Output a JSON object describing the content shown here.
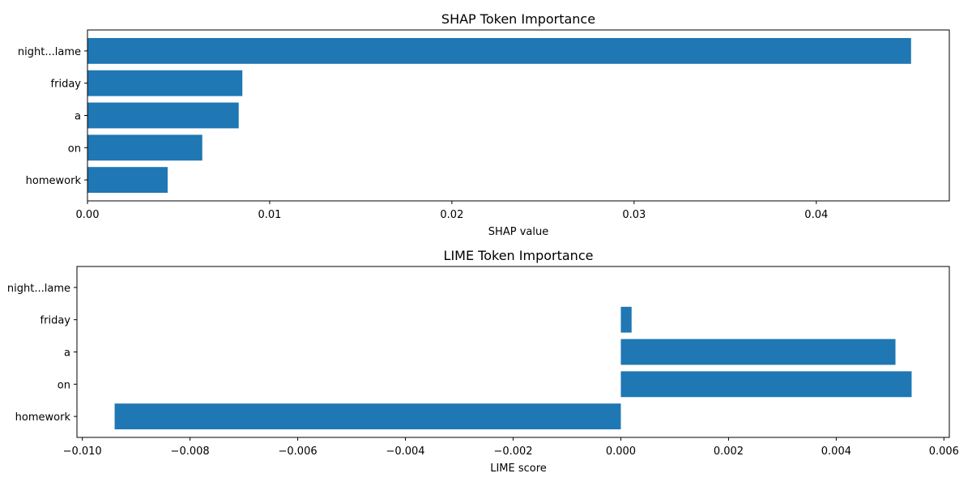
{
  "chart_data": [
    {
      "type": "bar",
      "orientation": "horizontal",
      "title": "SHAP Token Importance",
      "xlabel": "SHAP value",
      "ylabel": "",
      "categories": [
        "night...lame",
        "friday",
        "a",
        "on",
        "homework"
      ],
      "values": [
        0.0452,
        0.0085,
        0.0083,
        0.0063,
        0.0044
      ],
      "xlim": [
        0,
        0.0473
      ],
      "xticks": [
        0.0,
        0.01,
        0.02,
        0.03,
        0.04
      ],
      "xtick_labels": [
        "0.00",
        "0.01",
        "0.02",
        "0.03",
        "0.04"
      ],
      "bar_color": "#1f77b4",
      "grid": false
    },
    {
      "type": "bar",
      "orientation": "horizontal",
      "title": "LIME Token Importance",
      "xlabel": "LIME score",
      "ylabel": "",
      "categories": [
        "night...lame",
        "friday",
        "a",
        "on",
        "homework"
      ],
      "values": [
        0.0,
        0.0002,
        0.0051,
        0.0054,
        -0.0094
      ],
      "xlim": [
        -0.0101,
        0.0061
      ],
      "xticks": [
        -0.01,
        -0.008,
        -0.006,
        -0.004,
        -0.002,
        0.0,
        0.002,
        0.004,
        0.006
      ],
      "xtick_labels": [
        "−0.010",
        "−0.008",
        "−0.006",
        "−0.004",
        "−0.002",
        "0.000",
        "0.002",
        "0.004",
        "0.006"
      ],
      "bar_color": "#1f77b4",
      "grid": false
    }
  ]
}
